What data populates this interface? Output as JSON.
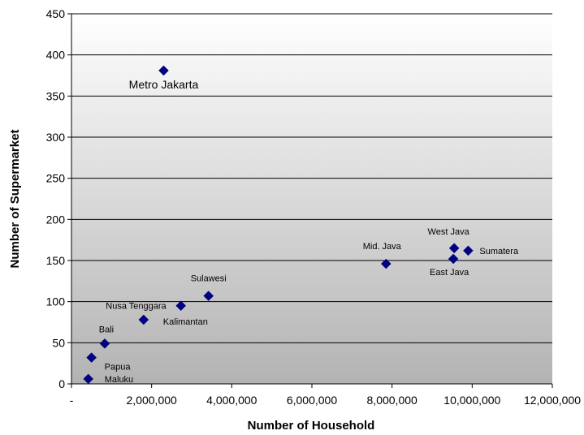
{
  "chart_data": {
    "type": "scatter",
    "xlabel": "Number of Household",
    "ylabel": "Number of Supermarket",
    "xlim": [
      0,
      12000000
    ],
    "ylim": [
      0,
      450
    ],
    "x_ticks": [
      0,
      2000000,
      4000000,
      6000000,
      8000000,
      10000000,
      12000000
    ],
    "x_tick_labels": [
      "-",
      "2,000,000",
      "4,000,000",
      "6,000,000",
      "8,000,000",
      "10,000,000",
      "12,000,000"
    ],
    "y_ticks": [
      0,
      50,
      100,
      150,
      200,
      250,
      300,
      350,
      400,
      450
    ],
    "y_tick_labels": [
      "0",
      "50",
      "100",
      "150",
      "200",
      "250",
      "300",
      "350",
      "400",
      "450"
    ],
    "grid": "horizontal",
    "legend": "none",
    "marker": "diamond",
    "marker_color": "#000080",
    "points": [
      {
        "label": "Metro Jakarta",
        "x": 2300000,
        "y": 381
      },
      {
        "label": "West Java",
        "x": 9550000,
        "y": 165
      },
      {
        "label": "Sumatera",
        "x": 9900000,
        "y": 162
      },
      {
        "label": "East Java",
        "x": 9530000,
        "y": 152
      },
      {
        "label": "Mid. Java",
        "x": 7850000,
        "y": 146
      },
      {
        "label": "Sulawesi",
        "x": 3420000,
        "y": 107
      },
      {
        "label": "Nusa Tenggara",
        "x": 2730000,
        "y": 95
      },
      {
        "label": "Kalimantan",
        "x": 1800000,
        "y": 78
      },
      {
        "label": "Bali",
        "x": 830000,
        "y": 49
      },
      {
        "label": "Papua",
        "x": 500000,
        "y": 32
      },
      {
        "label": "Maluku",
        "x": 420000,
        "y": 6
      }
    ]
  }
}
